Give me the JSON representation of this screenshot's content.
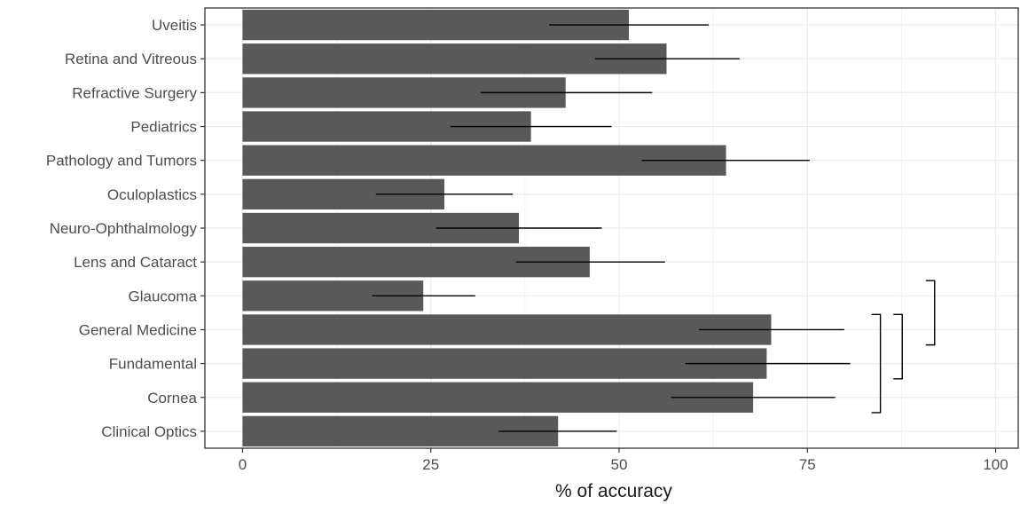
{
  "chart_data": {
    "type": "bar",
    "orientation": "horizontal",
    "xlabel": "% of accuracy",
    "ylabel": "",
    "xlim": [
      -5,
      103
    ],
    "xticks": [
      0,
      25,
      50,
      75,
      100
    ],
    "xtick_labels": [
      "0",
      "25",
      "50",
      "75",
      "100"
    ],
    "grid": true,
    "colors": {
      "bar": "#595959",
      "error_bar": "#000000",
      "grid": "#ebebeb",
      "panel_border": "#333333"
    },
    "categories": [
      "Uveitis",
      "Retina and Vitreous",
      "Refractive Surgery",
      "Pediatrics",
      "Pathology and Tumors",
      "Oculoplastics",
      "Neuro-Ophthalmology",
      "Lens and Cataract",
      "Glaucoma",
      "General Medicine",
      "Fundamental",
      "Cornea",
      "Clinical Optics"
    ],
    "values": [
      51.3,
      56.3,
      42.9,
      38.3,
      64.2,
      26.8,
      36.7,
      46.1,
      24.0,
      70.2,
      69.6,
      67.8,
      41.9
    ],
    "error_lower": [
      40.7,
      46.8,
      31.6,
      27.6,
      53.0,
      17.7,
      25.7,
      36.3,
      17.2,
      60.6,
      58.8,
      56.9,
      34.0
    ],
    "error_upper": [
      61.9,
      66.0,
      54.4,
      49.0,
      75.3,
      35.9,
      47.7,
      56.1,
      30.9,
      79.9,
      80.7,
      78.7,
      49.7
    ],
    "significance_brackets": [
      {
        "from": "General Medicine",
        "to": "Cornea",
        "x": 84.7
      },
      {
        "from": "General Medicine",
        "to": "Fundamental",
        "x": 87.6
      },
      {
        "from": "Glaucoma",
        "to": "General Medicine",
        "x": 91.9
      }
    ]
  }
}
